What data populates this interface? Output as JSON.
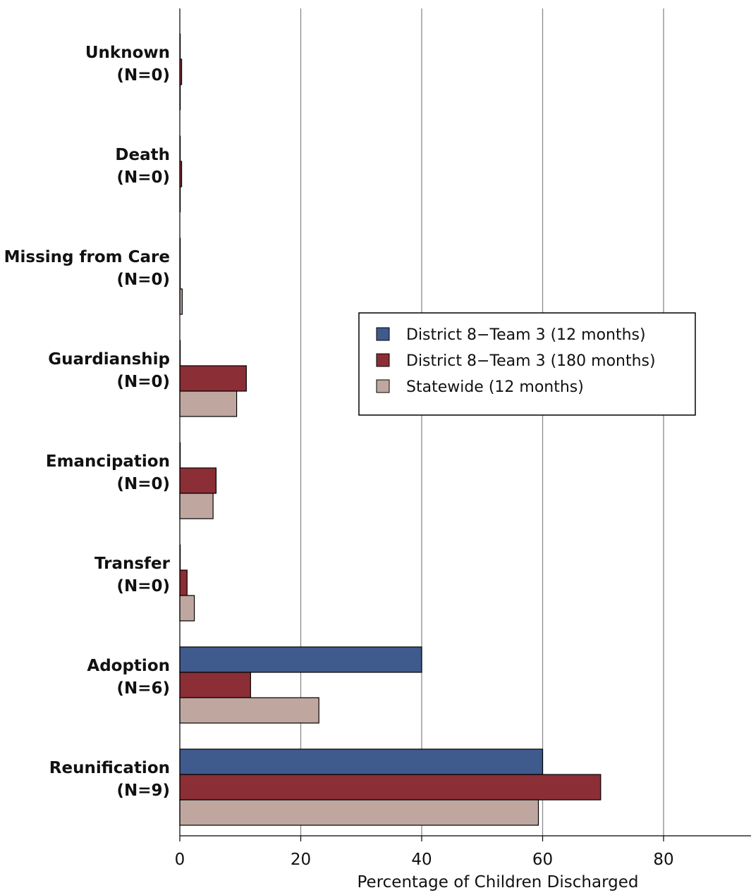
{
  "chart_data": {
    "type": "bar",
    "orientation": "horizontal",
    "title": "",
    "xlabel": "Percentage of Children Discharged",
    "ylabel": "",
    "xlim": [
      0,
      94
    ],
    "xticks": [
      0,
      20,
      40,
      60,
      80
    ],
    "grid": "vertical",
    "legend_position": "center-right",
    "categories": [
      {
        "name": "Unknown",
        "n": "(N=0)"
      },
      {
        "name": "Death",
        "n": "(N=0)"
      },
      {
        "name": "Missing from Care",
        "n": "(N=0)"
      },
      {
        "name": "Guardianship",
        "n": "(N=0)"
      },
      {
        "name": "Emancipation",
        "n": "(N=0)"
      },
      {
        "name": "Transfer",
        "n": "(N=0)"
      },
      {
        "name": "Adoption",
        "n": "(N=6)"
      },
      {
        "name": "Reunification",
        "n": "(N=9)"
      }
    ],
    "series": [
      {
        "name": "District 8−Team 3 (12 months)",
        "color": "#3f5a8c",
        "values": [
          0,
          0,
          0,
          0,
          0,
          0,
          40,
          60
        ]
      },
      {
        "name": "District 8−Team 3 (180 months)",
        "color": "#8b2e36",
        "values": [
          0.3,
          0.3,
          0,
          11,
          6,
          1.2,
          11.7,
          69.6
        ]
      },
      {
        "name": "Statewide (12 months)",
        "color": "#bfa7a0",
        "values": [
          0,
          0,
          0.4,
          9.4,
          5.5,
          2.4,
          23,
          59.3
        ]
      }
    ]
  }
}
